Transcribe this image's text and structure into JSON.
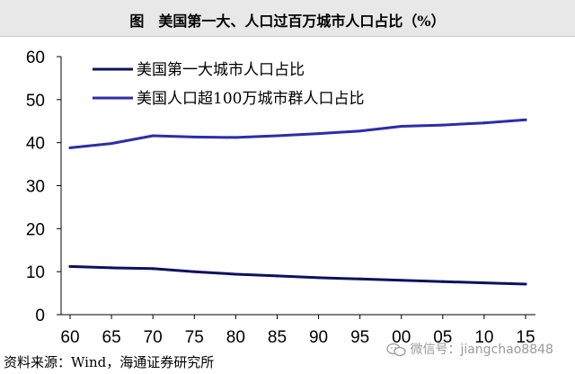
{
  "title": "图　美国第一大、人口过百万城市人口占比（%）",
  "source": "资料来源：Wind，海通证券研究所",
  "watermark": "微信号：jiangchao8848",
  "chart_data": {
    "type": "line",
    "x": [
      60,
      65,
      70,
      75,
      80,
      85,
      90,
      95,
      100,
      105,
      110,
      115
    ],
    "x_tick_labels": [
      "60",
      "65",
      "70",
      "75",
      "80",
      "85",
      "90",
      "95",
      "00",
      "05",
      "10",
      "15"
    ],
    "ylim": [
      0,
      60
    ],
    "y_ticks": [
      0,
      10,
      20,
      30,
      40,
      50,
      60
    ],
    "grid": false,
    "legend_position": "top-left",
    "series": [
      {
        "name": "美国第一大城市人口占比",
        "color": "#0d1160",
        "values": [
          11.2,
          10.9,
          10.7,
          10.0,
          9.4,
          9.0,
          8.6,
          8.3,
          8.0,
          7.7,
          7.4,
          7.1
        ]
      },
      {
        "name": "美国人口超100万城市群人口占比",
        "color": "#2b2ea8",
        "values": [
          38.8,
          39.8,
          41.6,
          41.3,
          41.2,
          41.6,
          42.1,
          42.7,
          43.8,
          44.1,
          44.6,
          45.3
        ]
      }
    ]
  }
}
